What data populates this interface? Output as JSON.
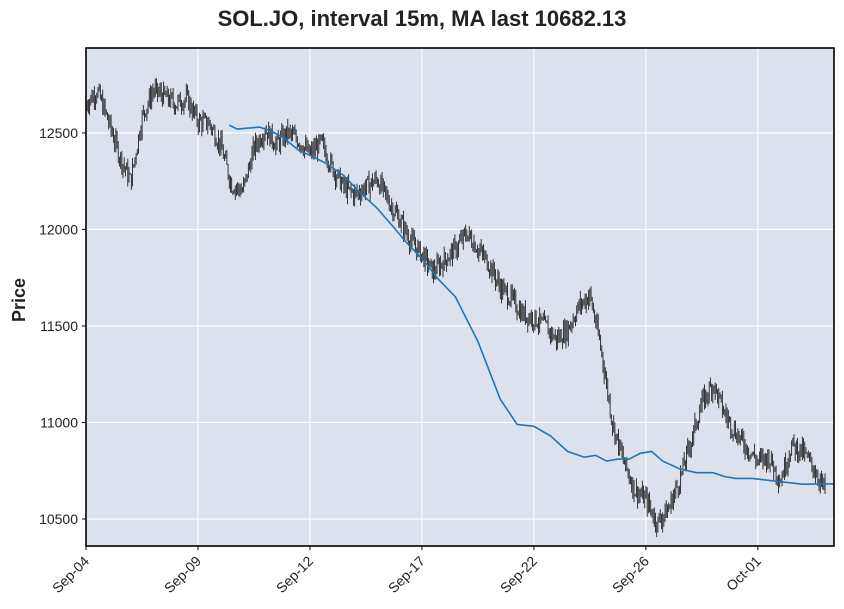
{
  "chart_data": {
    "type": "line",
    "subtype": "candlestick",
    "title": "SOL.JO, interval 15m, MA last 10682.13",
    "xlabel": "",
    "ylabel": "Price",
    "ylim": [
      10360,
      12940
    ],
    "yticks": [
      10500,
      11000,
      11500,
      12000,
      12500
    ],
    "xticks": [
      "Sep-04",
      "Sep-09",
      "Sep-12",
      "Sep-17",
      "Sep-22",
      "Sep-26",
      "Oct-01"
    ],
    "xtick_positions": [
      0,
      10,
      20,
      30,
      40,
      50,
      60
    ],
    "xlim": [
      0,
      66.8
    ],
    "grid": true,
    "background": "#dce1ee",
    "candle_color": "#222222",
    "ma_color": "#1f77b4",
    "series": [
      {
        "name": "Price",
        "values": [
          12650,
          12720,
          12560,
          12380,
          12250,
          12580,
          12720,
          12690,
          12650,
          12680,
          12560,
          12550,
          12440,
          12230,
          12200,
          12420,
          12520,
          12440,
          12500,
          12460,
          12390,
          12450,
          12320,
          12220,
          12180,
          12220,
          12260,
          12150,
          12050,
          11940,
          11870,
          11780,
          11840,
          11900,
          11980,
          11900,
          11820,
          11700,
          11640,
          11560,
          11540,
          11500,
          11430,
          11480,
          11600,
          11660,
          11380,
          11000,
          10800,
          10650,
          10600,
          10480,
          10550,
          10700,
          10900,
          11100,
          11200,
          11050,
          10950,
          10870,
          10800,
          10820,
          10700,
          10880,
          10850,
          10760,
          10650
        ]
      },
      {
        "name": "MA",
        "x": [
          12.8,
          13.5,
          14.5,
          15.5,
          16.5,
          17.5,
          19.0,
          20.5,
          21.5,
          23.0,
          24.5,
          26.0,
          27.5,
          28.5,
          30.0,
          31.5,
          33.0,
          35.0,
          37.0,
          38.5,
          40.0,
          41.5,
          43.0,
          44.5,
          45.5,
          46.5,
          47.5,
          48.5,
          49.5,
          50.5,
          51.5,
          53.0,
          54.5,
          56.0,
          57.0,
          58.0,
          59.5,
          61.0,
          62.5,
          64.0,
          66.8
        ],
        "values": [
          12540,
          12520,
          12525,
          12530,
          12510,
          12480,
          12410,
          12370,
          12340,
          12280,
          12190,
          12110,
          12010,
          11940,
          11850,
          11740,
          11650,
          11420,
          11120,
          10990,
          10980,
          10930,
          10850,
          10820,
          10830,
          10800,
          10810,
          10810,
          10840,
          10850,
          10800,
          10760,
          10740,
          10740,
          10720,
          10710,
          10710,
          10700,
          10690,
          10680,
          10682
        ]
      }
    ]
  }
}
